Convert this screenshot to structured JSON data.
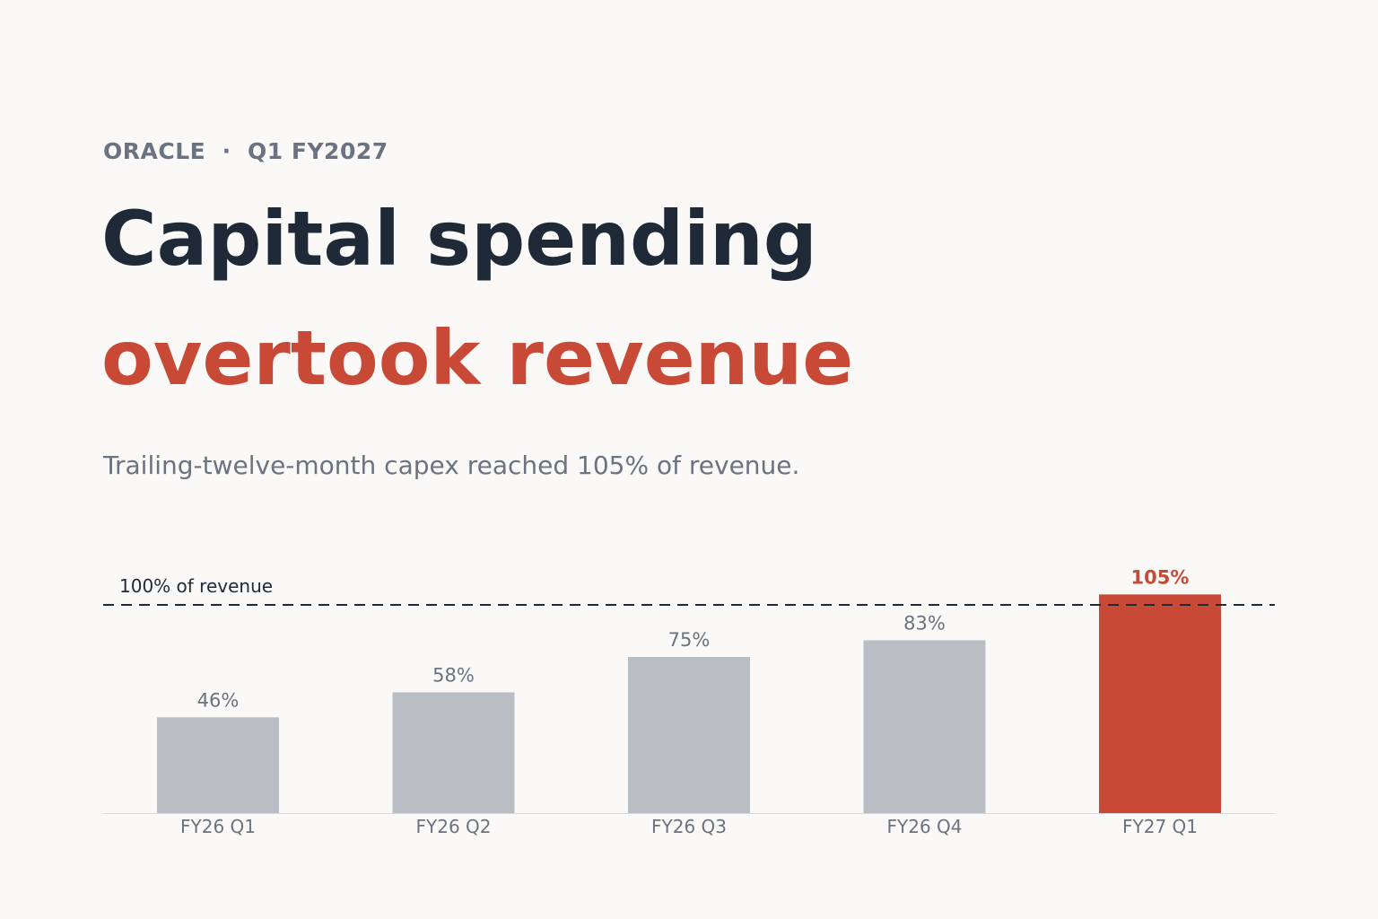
{
  "header": {
    "eyebrow": "ORACLE  ·  Q1 FY2027",
    "headline_line1": "Capital spending",
    "headline_line2": "overtook revenue",
    "subtitle": "Trailing-twelve-month capex reached 105% of revenue."
  },
  "colors": {
    "background": "#faf9f7",
    "headline": "#1f2937",
    "accent": "#c84a36",
    "bar_default": "#b9bdc4",
    "muted_text": "#6b7280"
  },
  "chart_data": {
    "type": "bar",
    "categories": [
      "FY26 Q1",
      "FY26 Q2",
      "FY26 Q3",
      "FY26 Q4",
      "FY27 Q1"
    ],
    "values": [
      46,
      58,
      75,
      83,
      105
    ],
    "value_labels": [
      "46%",
      "58%",
      "75%",
      "83%",
      "105%"
    ],
    "highlight_index": 4,
    "reference_line": {
      "value": 100,
      "label": "100% of revenue",
      "style": "dashed"
    },
    "ylim": [
      0,
      100
    ],
    "grid": false,
    "legend": "none",
    "xlabel": "",
    "ylabel": ""
  }
}
